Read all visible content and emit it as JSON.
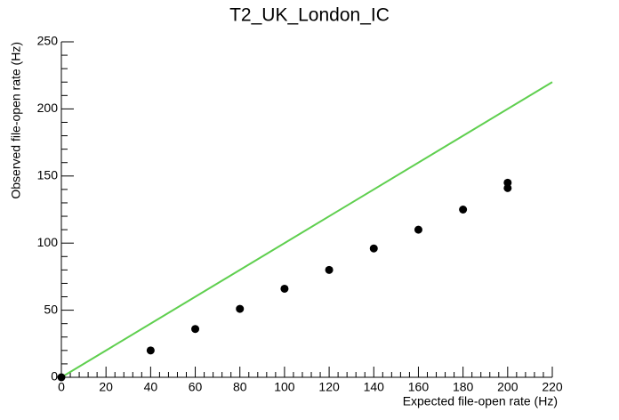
{
  "chart_data": {
    "type": "scatter",
    "title": "T2_UK_London_IC",
    "x_label": "Expected file-open rate (Hz)",
    "y_label": "Observed file-open rate (Hz)",
    "xlim": [
      0,
      220
    ],
    "ylim": [
      0,
      250
    ],
    "xticks": [
      0,
      20,
      40,
      60,
      80,
      100,
      120,
      140,
      160,
      180,
      200,
      220
    ],
    "yticks": [
      0,
      50,
      100,
      150,
      200,
      250
    ],
    "series": [
      {
        "type": "scatter",
        "color": "#000000",
        "x": [
          0,
          40,
          60,
          80,
          100,
          120,
          140,
          160,
          180,
          200,
          200
        ],
        "values": [
          0,
          20,
          36,
          51,
          66,
          80,
          96,
          110,
          125,
          145,
          141
        ]
      },
      {
        "type": "line",
        "color": "#5fcf4f",
        "x": [
          0,
          220
        ],
        "values": [
          0,
          220
        ]
      }
    ]
  }
}
